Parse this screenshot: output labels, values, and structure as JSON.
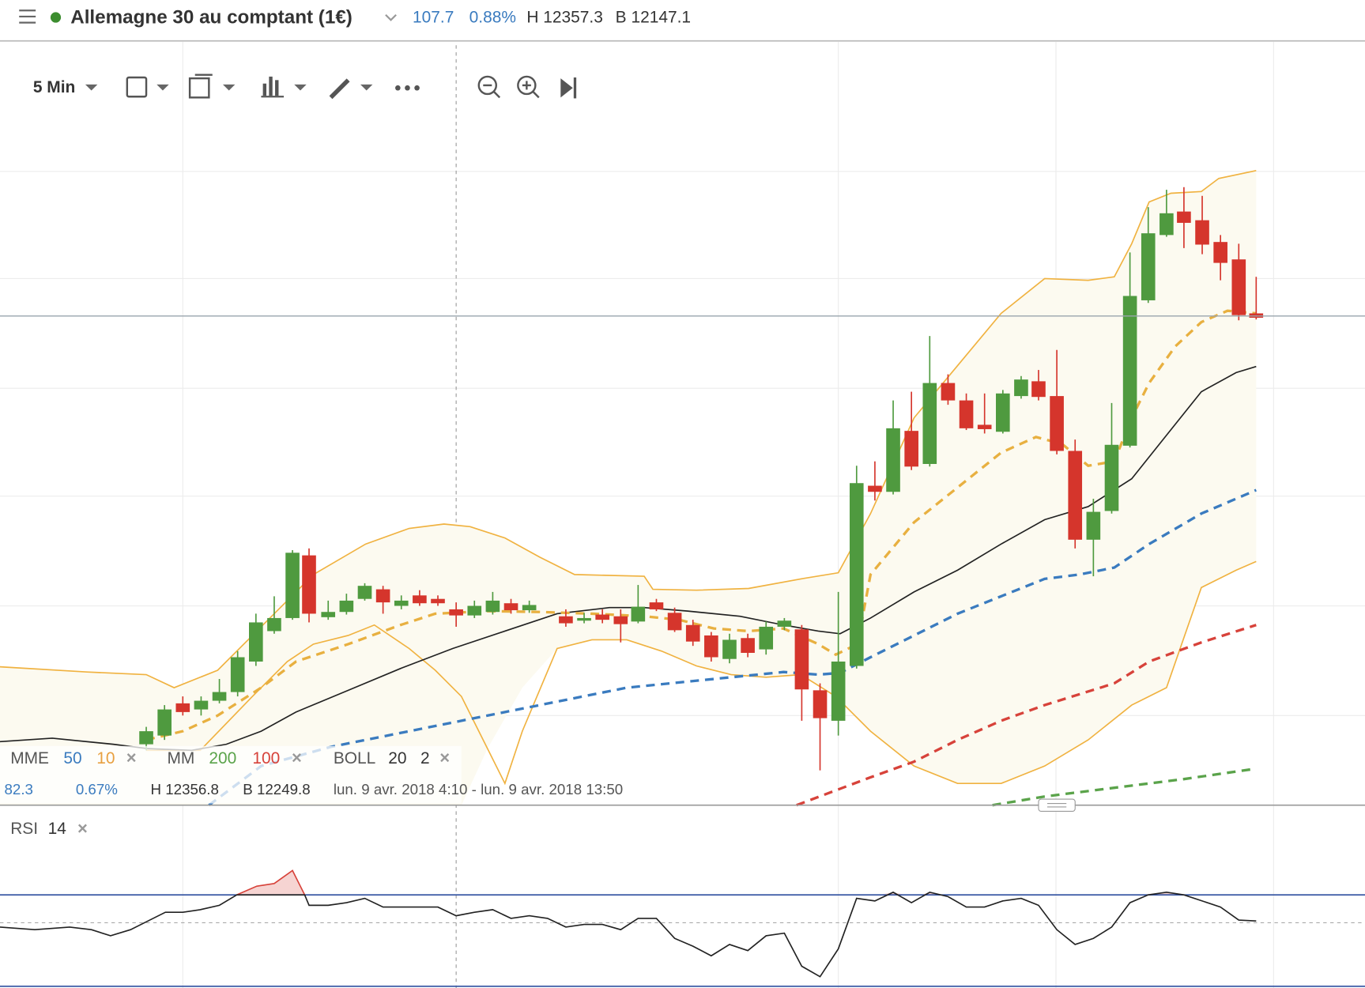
{
  "header": {
    "symbol": "Allemagne 30 au comptant (1€)",
    "change": "107.7",
    "change_pct": "0.88%",
    "high": "H 12357.3",
    "low": "B 12147.1"
  },
  "toolbar": {
    "interval": "5 Min"
  },
  "indicators": {
    "mme": {
      "label": "MME",
      "fast": "50",
      "slow": "10"
    },
    "mm": {
      "label": "MM",
      "long": "200",
      "short": "100"
    },
    "boll": {
      "label": "BOLL",
      "period": "20",
      "deviation": "2"
    }
  },
  "info_row": {
    "change": "82.3",
    "change_pct": "0.67%",
    "high": "H 12356.8",
    "low": "B 12249.8",
    "range": "lun. 9 avr. 2018 4:10 - lun. 9 avr. 2018 13:50"
  },
  "rsi": {
    "label": "RSI",
    "period": "14"
  }
}
